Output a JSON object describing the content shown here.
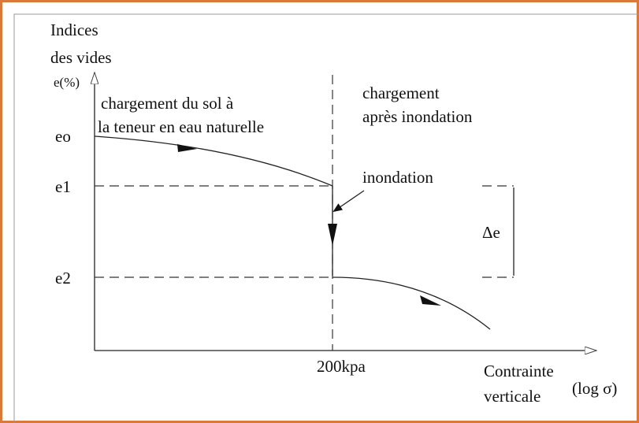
{
  "y_axis": {
    "label_lines": [
      "Indices",
      "des vides",
      "e(%)"
    ],
    "levels": [
      "eo",
      "e1",
      "e2"
    ]
  },
  "x_axis": {
    "label_lines": [
      "Contrainte",
      "verticale"
    ],
    "scale_note": "(log σ)",
    "marker": "200kpa"
  },
  "phase_before": {
    "lines": [
      "chargement du sol à",
      "la teneur en eau naturelle"
    ]
  },
  "phase_after": {
    "lines": [
      "chargement",
      "après inondation"
    ]
  },
  "event": "inondation",
  "delta": "Δe"
}
